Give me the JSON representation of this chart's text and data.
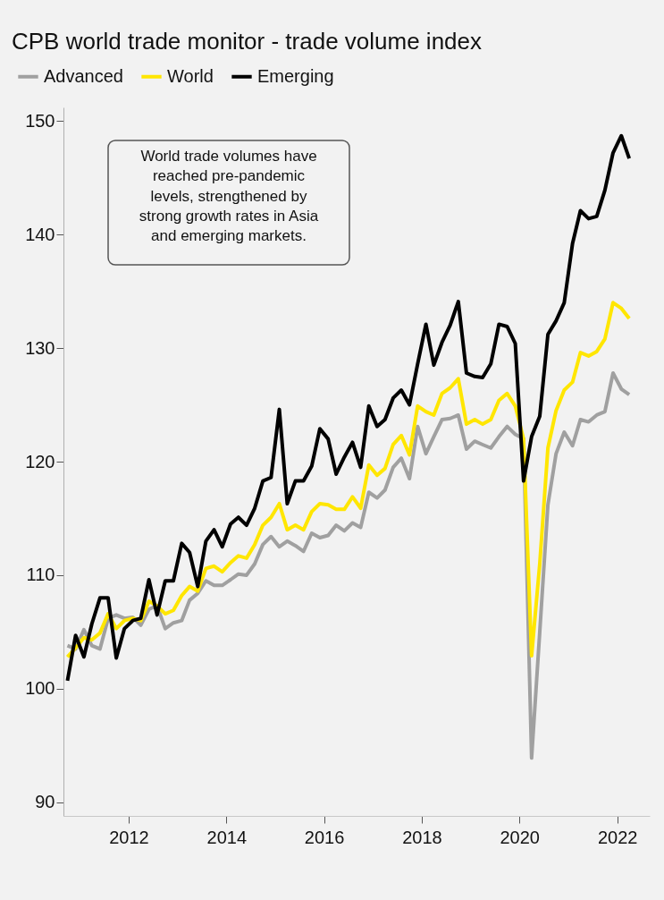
{
  "chart_data": {
    "type": "line",
    "title": "CPB world trade monitor - trade volume index",
    "x": [
      "2010-10",
      "2010-12",
      "2011-02",
      "2011-04",
      "2011-06",
      "2011-08",
      "2011-10",
      "2011-12",
      "2012-02",
      "2012-04",
      "2012-06",
      "2012-08",
      "2012-10",
      "2012-12",
      "2013-02",
      "2013-04",
      "2013-06",
      "2013-08",
      "2013-10",
      "2013-12",
      "2014-02",
      "2014-04",
      "2014-06",
      "2014-08",
      "2014-10",
      "2014-12",
      "2015-02",
      "2015-04",
      "2015-06",
      "2015-08",
      "2015-10",
      "2015-12",
      "2016-02",
      "2016-04",
      "2016-06",
      "2016-08",
      "2016-10",
      "2016-12",
      "2017-02",
      "2017-04",
      "2017-06",
      "2017-08",
      "2017-10",
      "2017-12",
      "2018-02",
      "2018-04",
      "2018-06",
      "2018-08",
      "2018-10",
      "2018-12",
      "2019-02",
      "2019-04",
      "2019-06",
      "2019-08",
      "2019-10",
      "2019-12",
      "2020-02",
      "2020-04",
      "2020-06",
      "2020-08",
      "2020-10",
      "2020-12",
      "2021-02",
      "2021-04",
      "2021-06",
      "2021-08",
      "2021-10",
      "2021-12",
      "2022-02",
      "2022-04"
    ],
    "series": [
      {
        "name": "Advanced",
        "color": "#a0a0a0",
        "values": [
          103.8,
          103.5,
          105.2,
          103.8,
          103.5,
          106.2,
          106.5,
          106.2,
          106.3,
          105.6,
          107.0,
          107.3,
          105.3,
          105.8,
          106.0,
          107.8,
          108.4,
          109.5,
          109.1,
          109.1,
          109.6,
          110.1,
          110.0,
          111.0,
          112.7,
          113.4,
          112.5,
          113.0,
          112.6,
          112.1,
          113.7,
          113.3,
          113.5,
          114.4,
          113.9,
          114.6,
          114.2,
          117.3,
          116.8,
          117.5,
          119.5,
          120.3,
          118.5,
          123.1,
          120.7,
          122.2,
          123.7,
          123.8,
          124.1,
          121.1,
          121.8,
          121.5,
          121.2,
          122.2,
          123.1,
          122.4,
          122.0,
          93.9,
          105.0,
          116.2,
          120.7,
          122.6,
          121.4,
          123.7,
          123.5,
          124.1,
          124.4,
          127.8,
          126.4,
          125.9
        ]
      },
      {
        "name": "World",
        "color": "#ffe600",
        "values": [
          102.8,
          103.6,
          104.5,
          104.3,
          104.9,
          106.6,
          105.3,
          106.0,
          106.2,
          106.0,
          107.7,
          107.3,
          106.6,
          106.9,
          108.2,
          109.0,
          108.6,
          110.6,
          110.8,
          110.3,
          111.1,
          111.7,
          111.5,
          112.7,
          114.4,
          115.1,
          116.3,
          114.0,
          114.4,
          114.0,
          115.6,
          116.3,
          116.2,
          115.8,
          115.8,
          116.9,
          115.9,
          119.7,
          118.8,
          119.4,
          121.5,
          122.3,
          120.6,
          124.9,
          124.4,
          124.1,
          126.0,
          126.5,
          127.3,
          123.3,
          123.7,
          123.3,
          123.7,
          125.4,
          126.0,
          124.9,
          122.0,
          102.9,
          111.0,
          121.2,
          124.5,
          126.3,
          127.0,
          129.6,
          129.3,
          129.7,
          130.8,
          134.0,
          133.5,
          132.6
        ]
      },
      {
        "name": "Emerging",
        "color": "#000000",
        "values": [
          100.7,
          104.7,
          102.8,
          105.7,
          108.0,
          108.0,
          102.7,
          105.3,
          106.0,
          106.2,
          109.6,
          106.5,
          109.5,
          109.5,
          112.8,
          112.0,
          109.0,
          113.0,
          114.0,
          112.5,
          114.5,
          115.1,
          114.4,
          115.9,
          118.3,
          118.6,
          124.6,
          116.3,
          118.3,
          118.3,
          119.6,
          122.9,
          122.0,
          118.9,
          120.4,
          121.7,
          119.5,
          124.9,
          123.1,
          123.7,
          125.6,
          126.3,
          125.0,
          128.6,
          132.1,
          128.5,
          130.5,
          132.0,
          134.1,
          127.8,
          127.5,
          127.4,
          128.6,
          132.1,
          131.9,
          130.4,
          118.3,
          122.2,
          124.0,
          131.2,
          132.4,
          134.0,
          139.2,
          142.1,
          141.4,
          141.6,
          143.9,
          147.2,
          148.7,
          146.7
        ]
      }
    ],
    "xlim": [
      "2010-09",
      "2022-09"
    ],
    "xticks": [
      "2012",
      "2014",
      "2016",
      "2018",
      "2020",
      "2022"
    ],
    "ylim": [
      88.8,
      151.2
    ],
    "yticks": [
      90,
      100,
      110,
      120,
      130,
      140,
      150
    ],
    "legend": "top left",
    "grid": false,
    "marker": "none",
    "line_style": "solid",
    "annotations": [
      "World trade volumes have\nreached pre-pandemic\nlevels, strengthened by\nstrong growth rates in Asia\nand emerging markets."
    ]
  }
}
